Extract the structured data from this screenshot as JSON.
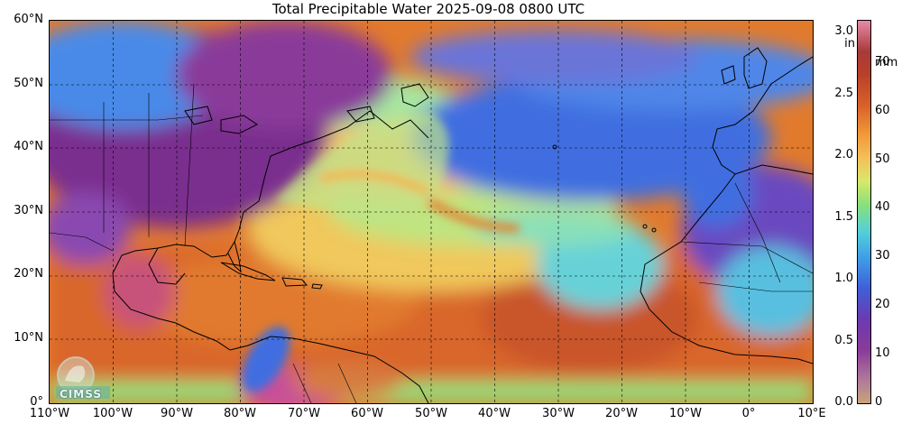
{
  "title": "Total Precipitable Water  2025-09-08 0800 UTC",
  "map": {
    "lat_labels": [
      "60°N",
      "50°N",
      "40°N",
      "30°N",
      "20°N",
      "10°N",
      "0°"
    ],
    "lon_labels": [
      "110°W",
      "100°W",
      "90°W",
      "80°W",
      "70°W",
      "60°W",
      "50°W",
      "40°W",
      "30°W",
      "20°W",
      "10°W",
      "0°",
      "10°E"
    ],
    "lat_range": [
      0,
      60
    ],
    "lon_range": [
      -110,
      10
    ],
    "gridlines": true,
    "colors": {
      "land_dry": "#7a2e8e",
      "ocean_moist": "#d76b23",
      "moderate": "#f2c25a",
      "dry_plume": "#3b6fe0",
      "very_dry": "#5a3ea8"
    }
  },
  "colorbar": {
    "in_unit": "in",
    "mm_unit": "mm",
    "in_ticks": [
      "3.0",
      "2.5",
      "2.0",
      "1.5",
      "1.0",
      "0.5",
      "0.0"
    ],
    "in_values": [
      3.0,
      2.5,
      2.0,
      1.5,
      1.0,
      0.5,
      0.0
    ],
    "mm_ticks": [
      "70",
      "60",
      "50",
      "40",
      "30",
      "20",
      "10",
      "0"
    ],
    "mm_values": [
      70,
      60,
      50,
      40,
      30,
      20,
      10,
      0
    ],
    "range_mm": [
      0,
      78.7
    ]
  },
  "logo": {
    "text": "CIMSS"
  }
}
